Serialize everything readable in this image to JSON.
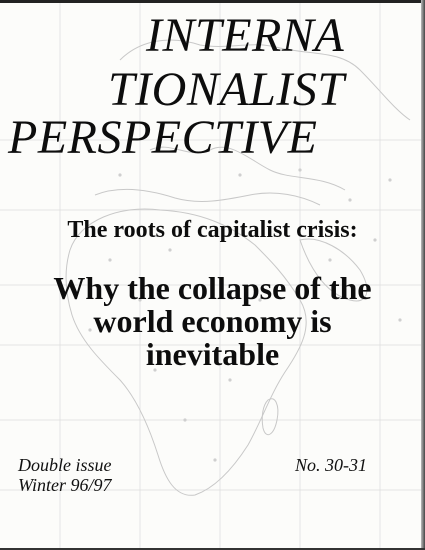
{
  "masthead": {
    "line1": "INTERNA",
    "line2": "TIONALIST",
    "line3": "PERSPECTIVE"
  },
  "subtitle": "The roots of capitalist crisis:",
  "headline": {
    "line1": "Why the collapse of the",
    "line2": "world economy is",
    "line3": "inevitable"
  },
  "issue": {
    "type": "Double issue",
    "season": "Winter 96/97",
    "number": "No. 30-31"
  },
  "colors": {
    "ink": "#0d0d0d",
    "map_lines": "#d4d4d4",
    "paper": "#fcfcfa"
  }
}
